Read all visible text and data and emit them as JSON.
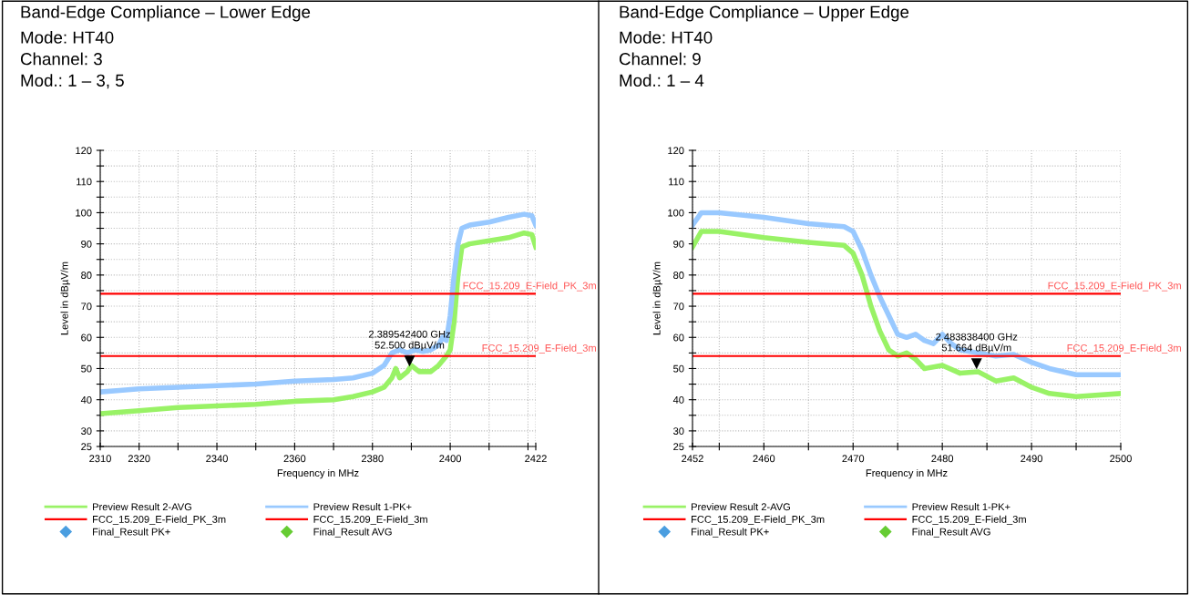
{
  "chart_data": [
    {
      "type": "line",
      "title": "Band-Edge Compliance – Lower Edge",
      "subtitle": "Mode: HT40\nChannel: 3\nMod.: 1 – 3, 5",
      "xlabel": "Frequency in MHz",
      "ylabel": "Level in dBµV/m",
      "xlim": [
        2310,
        2422
      ],
      "xticks": [
        2310,
        2320,
        {
          "value": 2330,
          "label": null
        },
        2340,
        {
          "value": 2350,
          "label": null
        },
        2360,
        {
          "value": 2370,
          "label": null
        },
        2380,
        {
          "value": 2390,
          "label": null
        },
        2400,
        {
          "value": 2410,
          "label": null
        },
        {
          "value": 2420,
          "label": null
        },
        2422
      ],
      "ylim": [
        25,
        120
      ],
      "yticks": [
        25,
        30,
        {
          "value": 35,
          "label": null
        },
        40,
        {
          "value": 45,
          "label": null
        },
        50,
        {
          "value": 55,
          "label": null
        },
        60,
        {
          "value": 65,
          "label": null
        },
        70,
        {
          "value": 75,
          "label": null
        },
        80,
        {
          "value": 85,
          "label": null
        },
        90,
        {
          "value": 95,
          "label": null
        },
        100,
        {
          "value": 105,
          "label": null
        },
        110,
        {
          "value": 115,
          "label": null
        },
        120
      ],
      "grid": true,
      "legend": "bottom",
      "marker": "none",
      "line_style": "solid",
      "series": [
        {
          "name": "Preview Result 2-AVG",
          "color": "#99f266",
          "x": [
            2310,
            2320,
            2330,
            2340,
            2350,
            2360,
            2370,
            2375,
            2380,
            2383,
            2385,
            2386,
            2387,
            2389,
            2390,
            2392,
            2395,
            2397,
            2399,
            2400,
            2401,
            2402,
            2403,
            2405,
            2410,
            2415,
            2419,
            2421,
            2422
          ],
          "values": [
            35.5,
            36.5,
            37.5,
            38,
            38.5,
            39.5,
            40,
            41,
            42.5,
            44,
            47,
            50,
            47,
            49,
            51,
            49,
            49,
            51,
            54,
            56,
            65,
            80,
            89,
            90,
            91,
            92,
            93.5,
            93,
            89
          ]
        },
        {
          "name": "Preview Result 1-PK+",
          "color": "#99c9ff",
          "x": [
            2310,
            2315,
            2320,
            2330,
            2340,
            2350,
            2360,
            2370,
            2375,
            2380,
            2383,
            2385,
            2387,
            2389,
            2391,
            2393,
            2395,
            2397,
            2398,
            2399,
            2400,
            2401,
            2402,
            2403,
            2405,
            2410,
            2415,
            2419,
            2421,
            2422
          ],
          "values": [
            42.5,
            43,
            43.5,
            44,
            44.5,
            45,
            46,
            46.5,
            47,
            48.5,
            51,
            55,
            56,
            55,
            56,
            55.5,
            56,
            57.5,
            60,
            59,
            67,
            80,
            90,
            95,
            96,
            97,
            98.5,
            99.5,
            99,
            96
          ]
        },
        {
          "type": "scatter",
          "name": "Final_Result PK+",
          "color": "#4a9ee0",
          "marker": "diamond"
        },
        {
          "type": "scatter",
          "name": "Final_Result AVG",
          "color": "#66cc33",
          "marker": "diamond"
        }
      ],
      "ref_lines": [
        {
          "axis": "y",
          "value": 74,
          "label": "FCC_15.209_E-Field_PK_3m",
          "color": "#ff0000",
          "line_style": "solid"
        },
        {
          "axis": "y",
          "value": 54,
          "label": "FCC_15.209_E-Field_3m",
          "color": "#ff0000",
          "line_style": "solid"
        }
      ],
      "annotations": [
        {
          "text": "2.389542400 GHz\n52.500 dBµV/m",
          "x": 2389.5424,
          "y": 52.5
        }
      ]
    },
    {
      "type": "line",
      "title": "Band-Edge Compliance – Upper Edge",
      "subtitle": "Mode: HT40\nChannel: 9\nMod.: 1 – 4",
      "xlabel": "Frequency in MHz",
      "ylabel": "Level in dBµV/m",
      "xlim": [
        2452,
        2500
      ],
      "xticks": [
        2452,
        {
          "value": 2455,
          "label": null
        },
        2460,
        {
          "value": 2465,
          "label": null
        },
        2470,
        {
          "value": 2475,
          "label": null
        },
        2480,
        {
          "value": 2485,
          "label": null
        },
        2490,
        {
          "value": 2495,
          "label": null
        },
        2500
      ],
      "ylim": [
        25,
        120
      ],
      "yticks": [
        25,
        30,
        {
          "value": 35,
          "label": null
        },
        40,
        {
          "value": 45,
          "label": null
        },
        50,
        {
          "value": 55,
          "label": null
        },
        60,
        {
          "value": 65,
          "label": null
        },
        70,
        {
          "value": 75,
          "label": null
        },
        80,
        {
          "value": 85,
          "label": null
        },
        90,
        {
          "value": 95,
          "label": null
        },
        100,
        {
          "value": 105,
          "label": null
        },
        110,
        {
          "value": 115,
          "label": null
        },
        120
      ],
      "grid": true,
      "legend": "bottom",
      "marker": "none",
      "line_style": "solid",
      "series": [
        {
          "name": "Preview Result 2-AVG",
          "color": "#99f266",
          "x": [
            2452,
            2453,
            2455,
            2460,
            2465,
            2469,
            2470,
            2471,
            2472,
            2473,
            2474,
            2475,
            2476,
            2477,
            2478,
            2480,
            2482,
            2484,
            2486,
            2488,
            2490,
            2492,
            2495,
            2500
          ],
          "values": [
            89,
            94,
            94,
            92,
            90.5,
            89.5,
            87,
            80,
            70,
            62,
            56,
            54,
            55,
            53,
            50,
            51,
            48.5,
            49,
            46,
            47,
            44,
            42,
            41,
            42
          ]
        },
        {
          "name": "Preview Result 1-PK+",
          "color": "#99c9ff",
          "x": [
            2452,
            2453,
            2455,
            2460,
            2465,
            2469,
            2470,
            2471,
            2472,
            2473,
            2474,
            2475,
            2476,
            2477,
            2478,
            2479,
            2480,
            2481,
            2482,
            2484,
            2486,
            2488,
            2490,
            2492,
            2495,
            2500
          ],
          "values": [
            96,
            100,
            100,
            98.5,
            96.5,
            95.5,
            94,
            88,
            80,
            73,
            67,
            61,
            60,
            61,
            59,
            58,
            61,
            58,
            56,
            55,
            54,
            54.5,
            52,
            50,
            48,
            48
          ]
        },
        {
          "type": "scatter",
          "name": "Final_Result PK+",
          "color": "#4a9ee0",
          "marker": "diamond"
        },
        {
          "type": "scatter",
          "name": "Final_Result AVG",
          "color": "#66cc33",
          "marker": "diamond"
        }
      ],
      "ref_lines": [
        {
          "axis": "y",
          "value": 74,
          "label": "FCC_15.209_E-Field_PK_3m",
          "color": "#ff0000",
          "line_style": "solid"
        },
        {
          "axis": "y",
          "value": 54,
          "label": "FCC_15.209_E-Field_3m",
          "color": "#ff0000",
          "line_style": "solid"
        }
      ],
      "annotations": [
        {
          "text": "2.483838400 GHz\n51.664 dBµV/m",
          "x": 2483.8384,
          "y": 51.664
        }
      ]
    }
  ]
}
